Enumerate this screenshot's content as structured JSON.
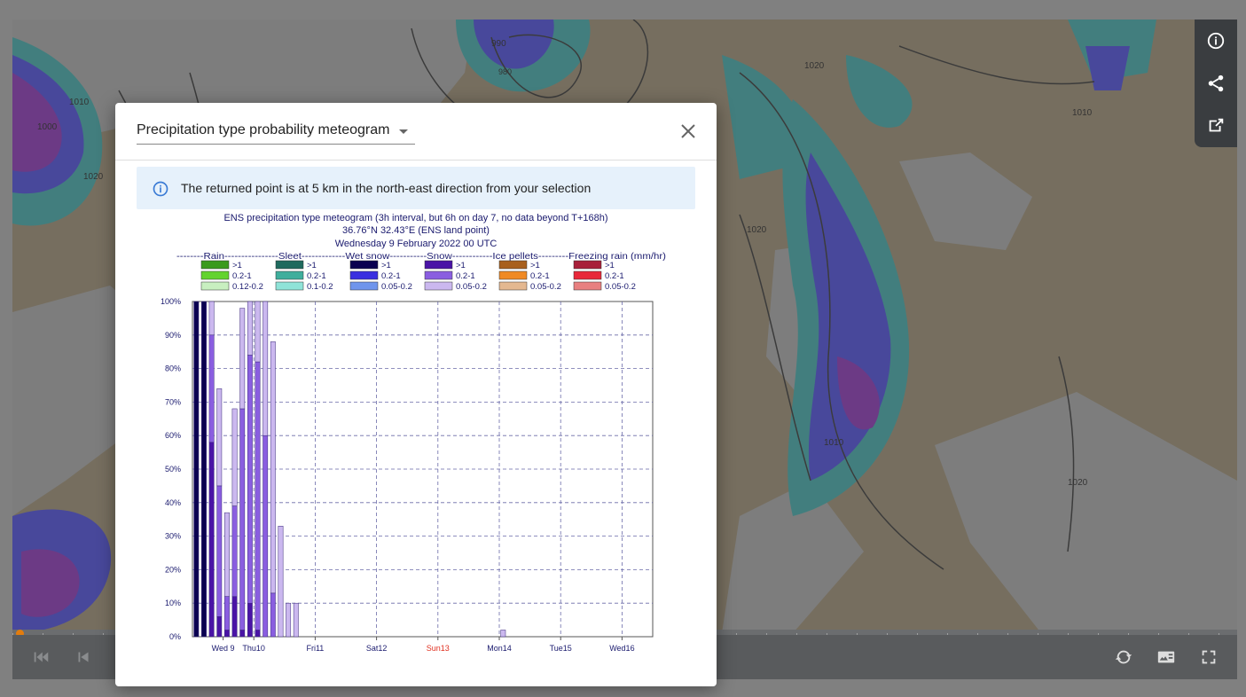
{
  "map": {
    "isobar_labels": [
      "1000",
      "1020",
      "990",
      "980",
      "1010",
      "1020",
      "1020",
      "1010",
      "1020",
      "1010"
    ]
  },
  "toolbar": {
    "info_icon": "info-icon",
    "share_icon": "share-icon",
    "export_icon": "open-in-new-icon"
  },
  "player": {
    "first_icon": "skip-previous-icon",
    "prev_icon": "step-back-icon",
    "loop_icon": "loop-icon",
    "legend_icon": "legend-icon",
    "fullscreen_icon": "fullscreen-icon"
  },
  "dialog": {
    "product_label": "Precipitation type probability meteogram",
    "info_message": "The returned point is at 5 km in the north-east direction from your selection"
  },
  "chart_data": {
    "type": "bar",
    "stacked": true,
    "title_lines": [
      "ENS precipitation type meteogram (3h interval, but 6h on day 7, no data beyond T+168h)",
      "36.76°N 32.43°E (ENS land point)",
      "Wednesday  9 February 2022 00 UTC"
    ],
    "legend_header": "--------Rain----------------Sleet-------------Wet snow-----------Snow------------Ice pellets---------Freezing rain (mm/hr)",
    "legend_groups": [
      {
        "name": "Rain",
        "entries": [
          {
            "label": ">1",
            "color": "#3a9a1c"
          },
          {
            "label": "0.2-1",
            "color": "#63d32e"
          },
          {
            "label": "0.12-0.2",
            "color": "#c8efc0"
          }
        ]
      },
      {
        "name": "Sleet",
        "entries": [
          {
            "label": ">1",
            "color": "#1f6a5e"
          },
          {
            "label": "0.2-1",
            "color": "#3fae9c"
          },
          {
            "label": "0.1-0.2",
            "color": "#8fe3d8"
          }
        ]
      },
      {
        "name": "Wet snow",
        "entries": [
          {
            "label": ">1",
            "color": "#0a0050"
          },
          {
            "label": "0.2-1",
            "color": "#3a2fe0"
          },
          {
            "label": "0.05-0.2",
            "color": "#6f95ec"
          }
        ]
      },
      {
        "name": "Snow",
        "entries": [
          {
            "label": ">1",
            "color": "#4a14a6"
          },
          {
            "label": "0.2-1",
            "color": "#8a5ee0"
          },
          {
            "label": "0.05-0.2",
            "color": "#cbb8ef"
          }
        ]
      },
      {
        "name": "Ice pellets",
        "entries": [
          {
            "label": ">1",
            "color": "#a8601d"
          },
          {
            "label": "0.2-1",
            "color": "#f08a24"
          },
          {
            "label": "0.05-0.2",
            "color": "#e4b890"
          }
        ]
      },
      {
        "name": "Freezing rain",
        "entries": [
          {
            "label": ">1",
            "color": "#a8203a"
          },
          {
            "label": "0.2-1",
            "color": "#e8283a"
          },
          {
            "label": "0.05-0.2",
            "color": "#e88080"
          }
        ]
      }
    ],
    "y_ticks": [
      "0%",
      "10%",
      "20%",
      "30%",
      "40%",
      "50%",
      "60%",
      "70%",
      "80%",
      "90%",
      "100%"
    ],
    "ylim": [
      0,
      100
    ],
    "x_day_labels": [
      {
        "label": "Wed 9",
        "color": "#1a1a6e"
      },
      {
        "label": "Thu10",
        "color": "#1a1a6e"
      },
      {
        "label": "Fri11",
        "color": "#1a1a6e"
      },
      {
        "label": "Sat12",
        "color": "#1a1a6e"
      },
      {
        "label": "Sun13",
        "color": "#e03020"
      },
      {
        "label": "Mon14",
        "color": "#1a1a6e"
      },
      {
        "label": "Tue15",
        "color": "#1a1a6e"
      },
      {
        "label": "Wed16",
        "color": "#1a1a6e"
      }
    ],
    "step_hours": 3,
    "bars": [
      {
        "t": 0,
        "segs": [
          {
            "c": "wet_gt1",
            "v": 100
          }
        ]
      },
      {
        "t": 3,
        "segs": [
          {
            "c": "wet_gt1",
            "v": 100
          }
        ]
      },
      {
        "t": 6,
        "segs": [
          {
            "c": "snow_gt1",
            "v": 58
          },
          {
            "c": "snow_mid",
            "v": 32
          },
          {
            "c": "snow_low",
            "v": 10
          }
        ]
      },
      {
        "t": 9,
        "segs": [
          {
            "c": "snow_gt1",
            "v": 6
          },
          {
            "c": "snow_mid",
            "v": 39
          },
          {
            "c": "snow_low",
            "v": 29
          }
        ]
      },
      {
        "t": 12,
        "segs": [
          {
            "c": "snow_gt1",
            "v": 2
          },
          {
            "c": "snow_mid",
            "v": 10
          },
          {
            "c": "snow_low",
            "v": 25
          }
        ]
      },
      {
        "t": 15,
        "segs": [
          {
            "c": "snow_gt1",
            "v": 12
          },
          {
            "c": "snow_mid",
            "v": 27
          },
          {
            "c": "snow_low",
            "v": 29
          }
        ]
      },
      {
        "t": 18,
        "segs": [
          {
            "c": "snow_gt1",
            "v": 2
          },
          {
            "c": "snow_mid",
            "v": 66
          },
          {
            "c": "snow_low",
            "v": 30
          }
        ]
      },
      {
        "t": 21,
        "segs": [
          {
            "c": "snow_gt1",
            "v": 10
          },
          {
            "c": "snow_mid",
            "v": 74
          },
          {
            "c": "snow_low",
            "v": 16
          }
        ]
      },
      {
        "t": 24,
        "segs": [
          {
            "c": "snow_gt1",
            "v": 2
          },
          {
            "c": "snow_mid",
            "v": 80
          },
          {
            "c": "snow_low",
            "v": 18
          }
        ]
      },
      {
        "t": 27,
        "segs": [
          {
            "c": "snow_mid",
            "v": 60
          },
          {
            "c": "snow_low",
            "v": 40
          }
        ]
      },
      {
        "t": 30,
        "segs": [
          {
            "c": "snow_mid",
            "v": 13
          },
          {
            "c": "snow_low",
            "v": 75
          }
        ]
      },
      {
        "t": 33,
        "segs": [
          {
            "c": "snow_low",
            "v": 33
          }
        ]
      },
      {
        "t": 36,
        "segs": [
          {
            "c": "snow_low",
            "v": 10
          }
        ]
      },
      {
        "t": 39,
        "segs": [
          {
            "c": "snow_low",
            "v": 10
          }
        ]
      },
      {
        "t": 120,
        "segs": [
          {
            "c": "snow_low",
            "v": 2
          }
        ]
      }
    ]
  }
}
